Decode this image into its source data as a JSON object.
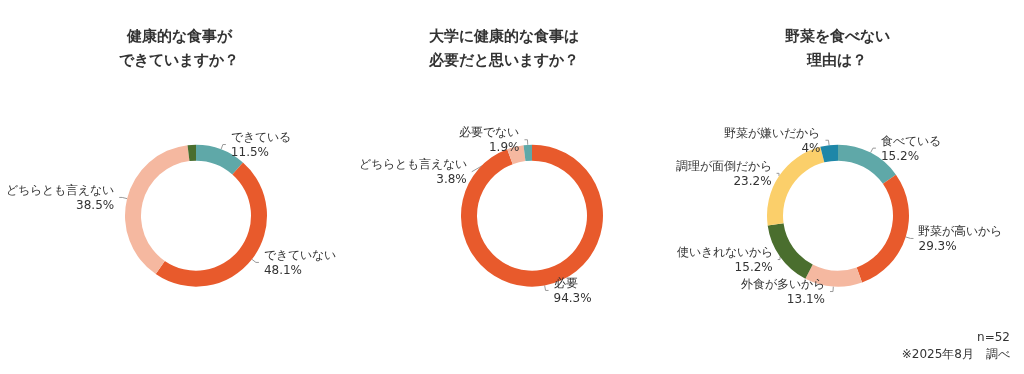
{
  "chart_data": [
    {
      "type": "donut",
      "title": "健康的な食事が",
      "subtitle": "できていますか？",
      "categories": [
        "できている",
        "できていない",
        "どちらとも言えない",
        null
      ],
      "values": [
        11.5,
        48.1,
        38.5,
        1.9
      ],
      "value_labels": [
        "11.5%",
        "48.1%",
        "38.5%",
        null
      ],
      "colors": [
        "#5fa8a8",
        "#e85a2c",
        "#f5b8a0",
        "#4a6e2e"
      ],
      "legend": false
    },
    {
      "type": "donut",
      "title": "大学に健康的な食事は",
      "subtitle": "必要だと思いますか？",
      "categories": [
        "必要",
        "どちらとも言えない",
        "必要でない"
      ],
      "values": [
        94.3,
        3.8,
        1.9
      ],
      "value_labels": [
        "94.3%",
        "3.8%",
        "1.9%"
      ],
      "colors": [
        "#e85a2c",
        "#f5b8a0",
        "#5fa8a8"
      ],
      "legend": false
    },
    {
      "type": "donut",
      "title": "野菜を食べない",
      "subtitle": "理由は？",
      "categories": [
        "食べている",
        "野菜が高いから",
        "外食が多いから",
        "使いきれないから",
        "調理が面倒だから",
        "野菜が嫌いだから"
      ],
      "values": [
        15.2,
        29.3,
        13.1,
        15.2,
        23.2,
        4
      ],
      "value_labels": [
        "15.2%",
        "29.3%",
        "13.1%",
        "15.2%",
        "23.2%",
        "4%"
      ],
      "colors": [
        "#5fa8a8",
        "#e85a2c",
        "#f5b8a0",
        "#4a6e2e",
        "#fbcf6a",
        "#1e87a8"
      ],
      "legend": false,
      "annotations": [
        "n=52",
        "※2025年8月　調べ"
      ]
    }
  ]
}
